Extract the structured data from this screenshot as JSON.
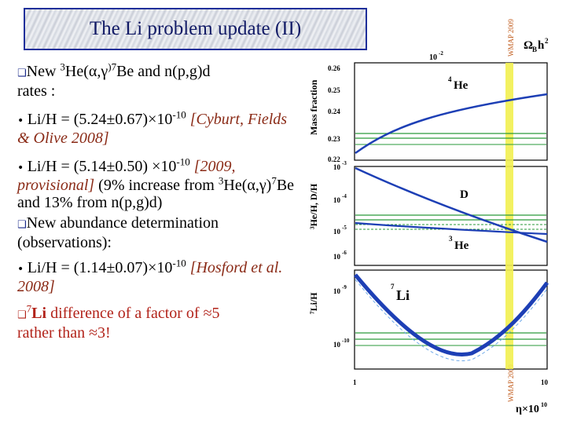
{
  "slide": {
    "title": "The Li problem update (II)",
    "b1_pre": "New ",
    "b1_he_sup": "3",
    "b1_he": "He(",
    "b1_ag": "α,γ",
    "b1_be_sup": ")7",
    "b1_be": "Be and n(p,g)d",
    "b1_line2": "rates :",
    "b2_a": "Li/H = (5.24±0.67)×10",
    "b2_exp": "-10",
    "b2_ref": " [Cyburt, Fields & Olive 2008]",
    "b3_a": "Li/H = (5.14±0.50) ×10",
    "b3_exp": "-10",
    "b3_ref": " [2009, provisional]",
    "b3_b": " (9% increase from ",
    "b3_he_sup": "3",
    "b3_c": "He(α,γ)",
    "b3_be_sup": "7",
    "b3_d": "Be and 13% from n(p,g)d)",
    "b4": "New abundance determination (observations):",
    "b5_a": "Li/H = (1.14±0.07)×10",
    "b5_exp": "-10",
    "b5_ref": " [Hosford et al. 2008]",
    "b6_sup": "7",
    "b6_li": "Li",
    "b6_a": " difference of a factor of ≈5",
    "b6_b": "rather than ≈3!"
  },
  "figure": {
    "wmap_label": "WMAP 2009",
    "top_axis_label": "Ω",
    "top_axis_sub": "B",
    "top_axis_h2": "h",
    "top_axis_sup": "2",
    "top_tick_1e-2": "10",
    "top_tick_1e-2_exp": "-2",
    "he_ylabel": "Mass fraction",
    "he_curve_label_sup": "4",
    "he_curve_label": "He",
    "he_ticks": [
      "0.26",
      "0.25",
      "0.24",
      "0.23",
      "0.22"
    ],
    "dh_ylabel": "³He/H, D/H",
    "dh_ticks_base": "10",
    "dh_ticks_exp": [
      "-3",
      "-4",
      "-5",
      "-6"
    ],
    "d_label": "D",
    "he3_label_sup": "3",
    "he3_label": "He",
    "li_ylabel": "⁷Li/H",
    "li_ticks_base": "10",
    "li_ticks_exp": [
      "-9",
      "-10"
    ],
    "li_curve_label_sup": "7",
    "li_curve_label": "Li",
    "x_ticks": [
      "1",
      "10"
    ],
    "x_axis_label": "η×10",
    "x_axis_exp": "10",
    "colors": {
      "curves": "#1d3fb5",
      "bands": "#2a9a3a",
      "wmap": "#f2f050",
      "title_border": "#1f2f9a"
    }
  }
}
